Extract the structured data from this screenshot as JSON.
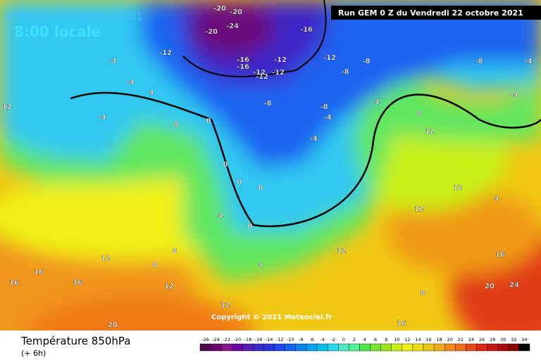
{
  "header": {
    "date": "Vendredi 22 octobre 2021",
    "time": "8:00 locale",
    "run": "Run GEM 0 Z du Vendredi 22 octobre 2021"
  },
  "footer": {
    "title": "Température 850hPa",
    "lead": "(+ 6h)",
    "copyright": "Copyright © 2021 Meteociel.fr"
  },
  "scale": {
    "ticks": [
      "-26",
      "-24",
      "-22",
      "-20",
      "-18",
      "-16",
      "-14",
      "-12",
      "-10",
      "-8",
      "-6",
      "-4",
      "-2",
      "0",
      "2",
      "4",
      "6",
      "8",
      "10",
      "12",
      "14",
      "16",
      "18",
      "20",
      "22",
      "24",
      "26",
      "28",
      "30",
      "32",
      "34"
    ],
    "colors": [
      "#4a0a4a",
      "#6a006e",
      "#8a148c",
      "#6a00a0",
      "#5a1eb4",
      "#3c28c8",
      "#2832dc",
      "#1e46f0",
      "#1464f0",
      "#0a82f0",
      "#00a0f0",
      "#00c0f0",
      "#28d8f0",
      "#50e6c8",
      "#50f096",
      "#50e650",
      "#78e628",
      "#a0e614",
      "#c8f014",
      "#f0f014",
      "#f0dc14",
      "#f0c814",
      "#f0aa14",
      "#f08c14",
      "#f06e14",
      "#e64614",
      "#dc2814",
      "#c81414",
      "#aa0a0a",
      "#8c0000",
      "#000000"
    ]
  },
  "map": {
    "labels": [
      "-20",
      "-20",
      "-24",
      "-20",
      "-16",
      "-16",
      "-12",
      "-12",
      "-16",
      "-12",
      "-12",
      "-12",
      "-12",
      "-8",
      "-8",
      "-8",
      "-8",
      "-4",
      "-4",
      "-4",
      "-4",
      "-4",
      "-8",
      "-4",
      "-4",
      "4",
      "4",
      "8",
      "8",
      "8",
      "12",
      "12",
      "12",
      "4",
      "0",
      "0",
      "0",
      "0",
      "0",
      "4",
      "8",
      "8",
      "12",
      "12",
      "12",
      "16",
      "16",
      "16",
      "16",
      "20",
      "20",
      "24",
      "12",
      "16",
      "12",
      "4"
    ]
  }
}
